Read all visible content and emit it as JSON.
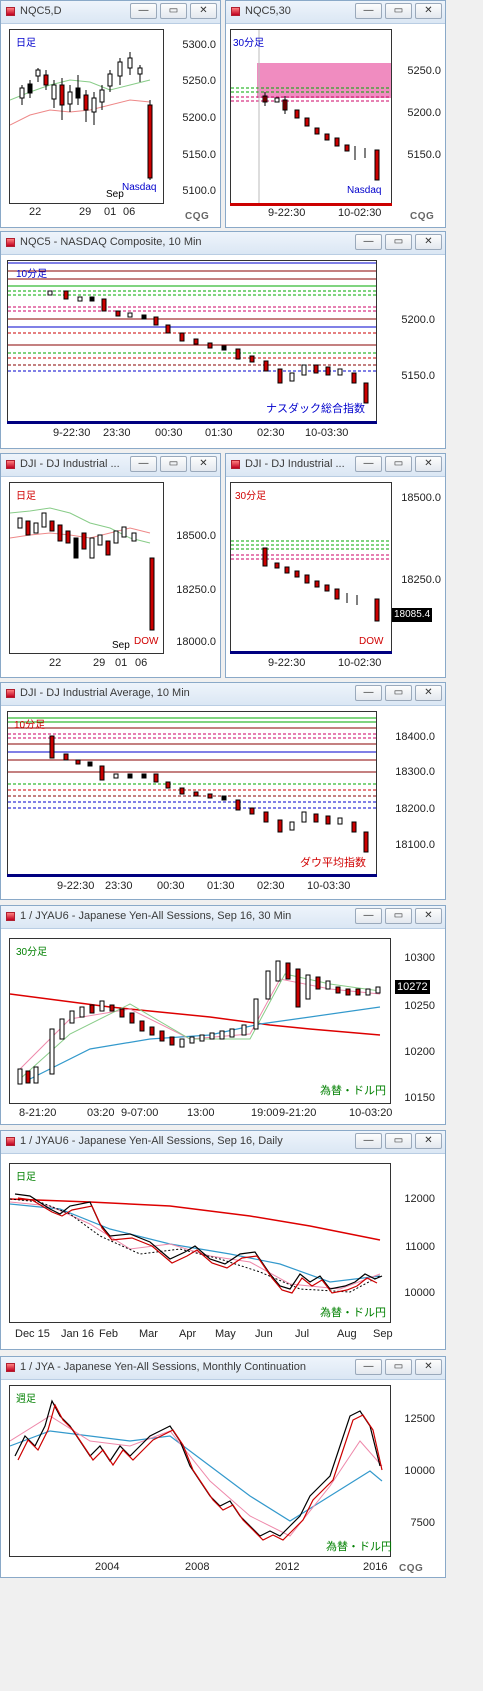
{
  "windows": [
    {
      "title": "NQC5,D",
      "period": "日足",
      "period_color": "#0000cc",
      "label": "Nasdaq",
      "label_color": "#0000cc",
      "yticks": [
        "5300.0",
        "5250.0",
        "5200.0",
        "5150.0",
        "5100.0"
      ],
      "xticks": [
        "22",
        "29",
        "01",
        "06"
      ],
      "xtop": "Sep"
    },
    {
      "title": "NQC5,30",
      "period": "30分足",
      "period_color": "#0000cc",
      "label": "Nasdaq",
      "label_color": "#0000cc",
      "yticks": [
        "5250.0",
        "5200.0",
        "5150.0"
      ],
      "xticks": [
        "9-22:30",
        "10-02:30"
      ]
    },
    {
      "title": "NQC5 - NASDAQ Composite, 10 Min",
      "period": "10分足",
      "period_color": "#0000cc",
      "label": "ナスダック総合指数",
      "label_color": "#0000cc",
      "yticks": [
        "5200.0",
        "5150.0"
      ],
      "xticks": [
        "9-22:30",
        "23:30",
        "00:30",
        "01:30",
        "02:30",
        "10-03:30"
      ]
    },
    {
      "title": "DJI - DJ Industrial ...",
      "period": "日足",
      "period_color": "#d00000",
      "label": "DOW",
      "label_color": "#d00000",
      "yticks": [
        "18500.0",
        "18250.0",
        "18000.0"
      ],
      "xticks": [
        "22",
        "29",
        "01",
        "06"
      ],
      "xtop": "Sep"
    },
    {
      "title": "DJI - DJ Industrial ...",
      "period": "30分足",
      "period_color": "#d00000",
      "label": "DOW",
      "label_color": "#d00000",
      "yticks": [
        "18500.0",
        "18250.0"
      ],
      "xticks": [
        "9-22:30",
        "10-02:30"
      ],
      "last": "18085.4"
    },
    {
      "title": "DJI - DJ Industrial Average, 10 Min",
      "period": "10分足",
      "period_color": "#d00000",
      "label": "ダウ平均指数",
      "label_color": "#d00000",
      "yticks": [
        "18400.0",
        "18300.0",
        "18200.0",
        "18100.0"
      ],
      "xticks": [
        "9-22:30",
        "23:30",
        "00:30",
        "01:30",
        "02:30",
        "10-03:30"
      ]
    },
    {
      "title": "1 / JYAU6 - Japanese Yen-All Sessions, Sep 16, 30 Min",
      "period": "30分足",
      "period_color": "#008000",
      "label": "為替・ドル円",
      "label_color": "#008000",
      "yticks": [
        "10300",
        "10250",
        "10200",
        "10150"
      ],
      "xticks": [
        "8-21:20",
        "03:20",
        "9-07:00",
        "13:00",
        "19:00",
        "9-21:20",
        "10-03:20"
      ],
      "last": "10272"
    },
    {
      "title": "1 / JYAU6 - Japanese Yen-All Sessions, Sep 16, Daily",
      "period": "日足",
      "period_color": "#008000",
      "label": "為替・ドル円",
      "label_color": "#008000",
      "yticks": [
        "12000",
        "11000",
        "10000"
      ],
      "xticks": [
        "Dec 15",
        "Jan 16",
        "Feb",
        "Mar",
        "Apr",
        "May",
        "Jun",
        "Jul",
        "Aug",
        "Sep"
      ]
    },
    {
      "title": "1 / JYA - Japanese Yen-All Sessions, Monthly Continuation",
      "period": "週足",
      "period_color": "#008000",
      "label": "為替・ドル円",
      "label_color": "#008000",
      "yticks": [
        "12500",
        "10000",
        "7500"
      ],
      "xticks": [
        "2004",
        "2008",
        "2012",
        "2016"
      ]
    }
  ],
  "buttons": {
    "minimize": "—",
    "restore": "▭",
    "close": "✕"
  },
  "brand": "CQG"
}
